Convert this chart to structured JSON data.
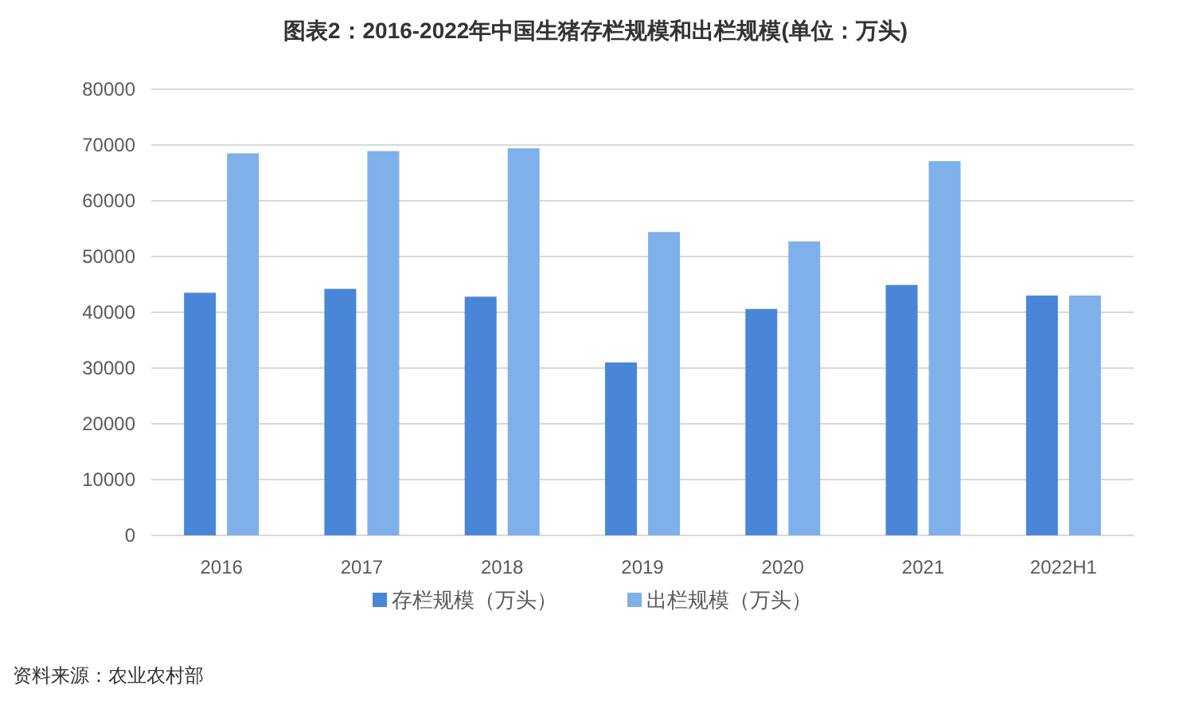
{
  "chart_data": {
    "type": "bar",
    "title": "图表2：2016-2022年中国生猪存栏规模和出栏规模(单位：万头)",
    "categories": [
      "2016",
      "2017",
      "2018",
      "2019",
      "2020",
      "2021",
      "2022H1"
    ],
    "series": [
      {
        "name": "存栏规模（万头）",
        "color": "#4a86d8",
        "values": [
          43500,
          44200,
          42800,
          31000,
          40600,
          44900,
          43000
        ]
      },
      {
        "name": "出栏规模（万头）",
        "color": "#7fb0ea",
        "values": [
          68500,
          68900,
          69400,
          54400,
          52700,
          67100,
          43000
        ]
      }
    ],
    "ylim": [
      0,
      80000
    ],
    "yticks": [
      0,
      10000,
      20000,
      30000,
      40000,
      50000,
      60000,
      70000,
      80000
    ],
    "grid": "y",
    "legend": "bottom",
    "annotations": [
      "资料来源：农业农村部"
    ]
  }
}
